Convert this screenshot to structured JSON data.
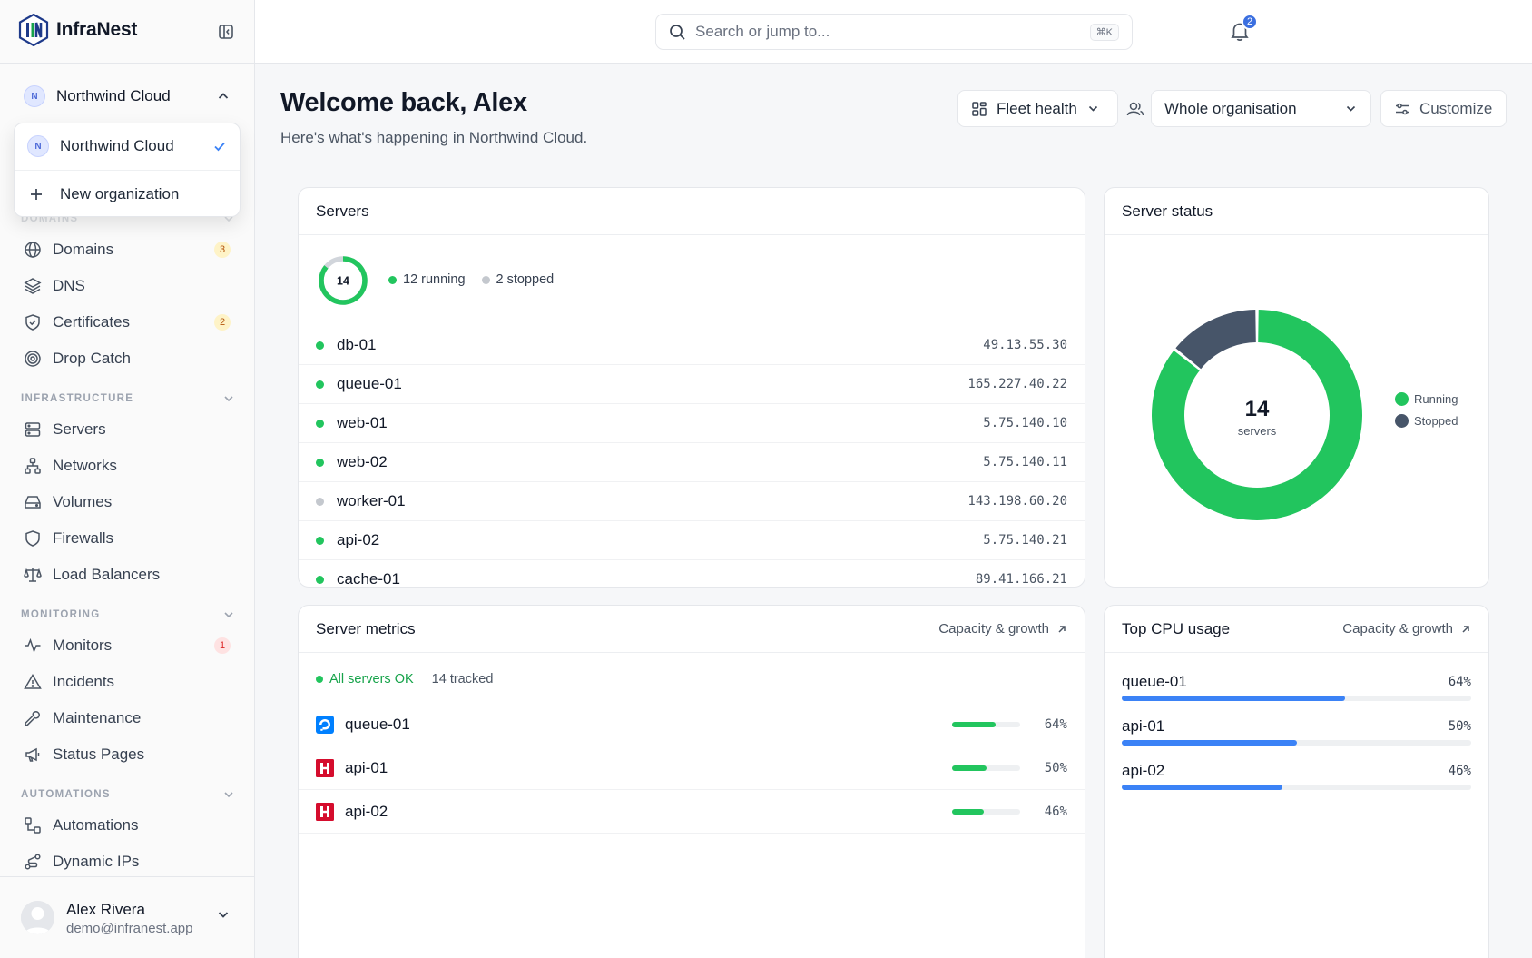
{
  "brand": {
    "name": "InfraNest"
  },
  "org": {
    "current": "Northwind Cloud",
    "initial": "N",
    "dropdown": {
      "items": [
        {
          "label": "Northwind Cloud",
          "initial": "N"
        }
      ],
      "new_label": "New organization"
    }
  },
  "sidebar": {
    "domains_section": "DOMAINS",
    "domains": [
      {
        "label": "Domains",
        "badge": "3"
      },
      {
        "label": "DNS"
      },
      {
        "label": "Certificates",
        "badge": "2"
      },
      {
        "label": "Drop Catch"
      }
    ],
    "infrastructure_section": "INFRASTRUCTURE",
    "infrastructure": [
      {
        "label": "Servers"
      },
      {
        "label": "Networks"
      },
      {
        "label": "Volumes"
      },
      {
        "label": "Firewalls"
      },
      {
        "label": "Load Balancers"
      }
    ],
    "monitoring_section": "MONITORING",
    "monitoring": [
      {
        "label": "Monitors",
        "badge": "1"
      },
      {
        "label": "Incidents"
      },
      {
        "label": "Maintenance"
      },
      {
        "label": "Status Pages"
      }
    ],
    "automations_section": "AUTOMATIONS",
    "automations": [
      {
        "label": "Automations"
      },
      {
        "label": "Dynamic IPs"
      }
    ]
  },
  "user": {
    "name": "Alex Rivera",
    "email": "demo@infranest.app"
  },
  "search": {
    "placeholder": "Search or jump to...",
    "shortcut": "⌘K"
  },
  "notifications": {
    "count": "2"
  },
  "header": {
    "title": "Welcome back, Alex",
    "subtitle": "Here's what's happening in Northwind Cloud.",
    "view_label": "Fleet health",
    "scope_label": "Whole organisation",
    "customize_label": "Customize"
  },
  "servers_card": {
    "title": "Servers",
    "total": "14",
    "running_label": "12 running",
    "stopped_label": "2 stopped",
    "running": 12,
    "stopped": 2,
    "rows": [
      {
        "name": "db-01",
        "ip": "49.13.55.30",
        "status": "running"
      },
      {
        "name": "queue-01",
        "ip": "165.227.40.22",
        "status": "running"
      },
      {
        "name": "web-01",
        "ip": "5.75.140.10",
        "status": "running"
      },
      {
        "name": "web-02",
        "ip": "5.75.140.11",
        "status": "running"
      },
      {
        "name": "worker-01",
        "ip": "143.198.60.20",
        "status": "stopped"
      },
      {
        "name": "api-02",
        "ip": "5.75.140.21",
        "status": "running"
      },
      {
        "name": "cache-01",
        "ip": "89.41.166.21",
        "status": "running"
      }
    ]
  },
  "status_card": {
    "title": "Server status",
    "center_value": "14",
    "center_label": "servers",
    "legend": [
      {
        "label": "Running",
        "value": 12,
        "color": "#22c55e"
      },
      {
        "label": "Stopped",
        "value": 2,
        "color": "#475569"
      }
    ]
  },
  "metrics_card": {
    "title": "Server metrics",
    "link": "Capacity & growth",
    "ok_label": "All servers OK",
    "tracked_label": "14 tracked",
    "rows": [
      {
        "name": "queue-01",
        "pct": "64%",
        "value": 0.64,
        "provider": "digitalocean-icon"
      },
      {
        "name": "api-01",
        "pct": "50%",
        "value": 0.5,
        "provider": "hetzner-icon"
      },
      {
        "name": "api-02",
        "pct": "46%",
        "value": 0.46,
        "provider": "hetzner-icon"
      }
    ]
  },
  "cpu_card": {
    "title": "Top CPU usage",
    "link": "Capacity & growth",
    "rows": [
      {
        "name": "queue-01",
        "pct": "64%",
        "value": 0.64
      },
      {
        "name": "api-01",
        "pct": "50%",
        "value": 0.5
      },
      {
        "name": "api-02",
        "pct": "46%",
        "value": 0.46
      }
    ]
  },
  "colors": {
    "running": "#22c55e",
    "stopped": "#9ca3af",
    "accent": "#3b82f6",
    "stopped_slice": "#475569"
  }
}
